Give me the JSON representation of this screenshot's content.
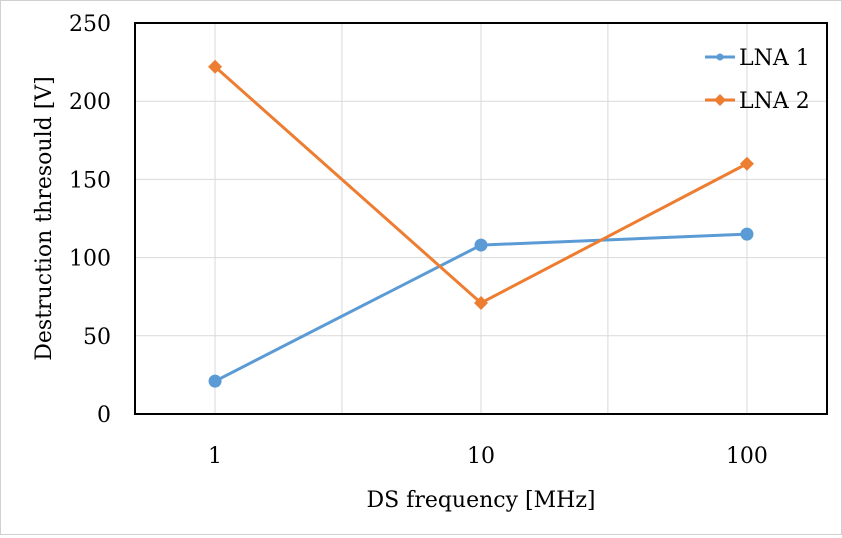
{
  "chart_data": {
    "type": "line",
    "title": "",
    "xlabel": "DS frequency [MHz]",
    "ylabel": "Destruction thresould [V]",
    "x_scale": "log",
    "xlim": [
      0.5,
      200
    ],
    "ylim": [
      0,
      250
    ],
    "x_ticks": [
      1,
      10,
      100
    ],
    "x_tick_labels": [
      "1",
      "10",
      "100"
    ],
    "y_ticks": [
      0,
      50,
      100,
      150,
      200,
      250
    ],
    "y_tick_labels": [
      "0",
      "50",
      "100",
      "150",
      "200",
      "250"
    ],
    "grid": true,
    "legend_position": "top-right",
    "x": [
      1,
      10,
      100
    ],
    "series": [
      {
        "name": "LNA 1",
        "values": [
          21,
          108,
          115
        ],
        "color": "#5b9bd5",
        "marker": "circle"
      },
      {
        "name": "LNA 2",
        "values": [
          222,
          71,
          160
        ],
        "color": "#ed7d31",
        "marker": "diamond"
      }
    ]
  }
}
